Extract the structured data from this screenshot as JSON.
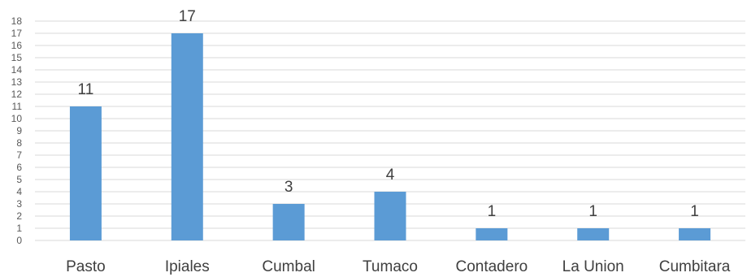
{
  "chart_data": {
    "type": "bar",
    "categories": [
      "Pasto",
      "Ipiales",
      "Cumbal",
      "Tumaco",
      "Contadero",
      "La Union",
      "Cumbitara"
    ],
    "values": [
      11,
      17,
      3,
      4,
      1,
      1,
      1
    ],
    "title": "",
    "xlabel": "",
    "ylabel": "",
    "ylim": [
      0,
      18
    ],
    "yticks": [
      0,
      1,
      2,
      3,
      4,
      5,
      6,
      7,
      8,
      9,
      10,
      11,
      12,
      13,
      14,
      15,
      16,
      17,
      18
    ],
    "grid": true,
    "legend": "none",
    "data_labels": true,
    "bar_color": "#5b9bd5"
  }
}
